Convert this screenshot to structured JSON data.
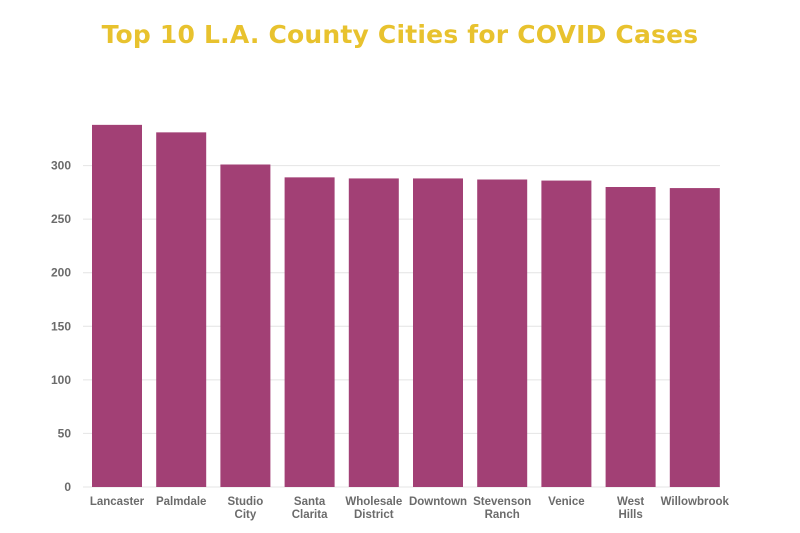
{
  "chart_data": {
    "type": "bar",
    "title": "Top 10 L.A. County Cities for COVID Cases",
    "xlabel": "",
    "ylabel": "",
    "categories": [
      [
        "Lancaster"
      ],
      [
        "Palmdale"
      ],
      [
        "Studio",
        "City"
      ],
      [
        "Santa",
        "Clarita"
      ],
      [
        "Wholesale",
        "District"
      ],
      [
        "Downtown"
      ],
      [
        "Stevenson",
        "Ranch"
      ],
      [
        "Venice"
      ],
      [
        "West",
        "Hills"
      ],
      [
        "Willowbrook"
      ]
    ],
    "values": [
      338,
      331,
      301,
      289,
      288,
      288,
      287,
      286,
      280,
      279
    ],
    "ylim": [
      0,
      350
    ],
    "yticks": [
      0,
      50,
      100,
      150,
      200,
      250,
      300
    ],
    "grid": true,
    "legend": "none",
    "colors": {
      "bar": "#a24075",
      "title": "#e8c22e",
      "label": "#6b6b6b",
      "grid": "#e4e4e4"
    }
  }
}
